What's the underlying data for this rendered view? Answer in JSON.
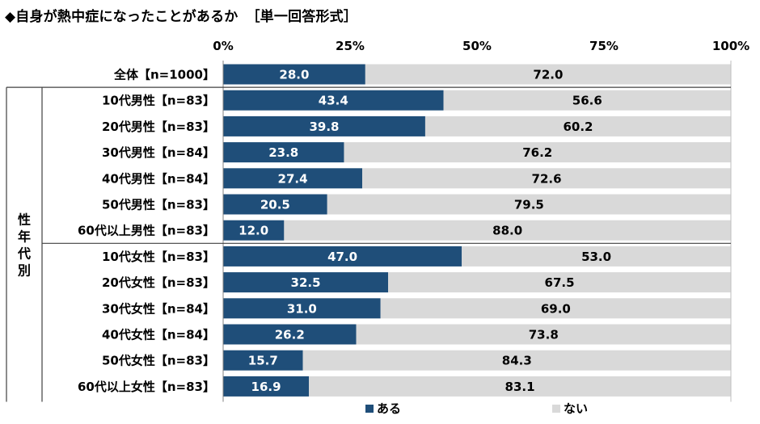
{
  "title": "◆自身が熱中症になったことがあるか",
  "title_note": "［単一回答形式］",
  "group_label": "性年代別",
  "chart_data": {
    "type": "bar",
    "orientation": "horizontal",
    "stacked": true,
    "xlim": [
      0,
      100
    ],
    "x_ticks": [
      "0%",
      "25%",
      "50%",
      "75%",
      "100%"
    ],
    "categories": [
      "全体【n=1000】",
      "10代男性【n=83】",
      "20代男性【n=83】",
      "30代男性【n=84】",
      "40代男性【n=84】",
      "50代男性【n=83】",
      "60代以上男性【n=83】",
      "10代女性【n=83】",
      "20代女性【n=83】",
      "30代女性【n=84】",
      "40代女性【n=84】",
      "50代女性【n=83】",
      "60代以上女性【n=83】"
    ],
    "series": [
      {
        "name": "ある",
        "color": "#1f4e79",
        "values": [
          28.0,
          43.4,
          39.8,
          23.8,
          27.4,
          20.5,
          12.0,
          47.0,
          32.5,
          31.0,
          26.2,
          15.7,
          16.9
        ]
      },
      {
        "name": "ない",
        "color": "#d9d9d9",
        "values": [
          72.0,
          56.6,
          60.2,
          76.2,
          72.6,
          79.5,
          88.0,
          53.0,
          67.5,
          69.0,
          73.8,
          84.3,
          83.1
        ]
      }
    ],
    "legend_position": "bottom"
  }
}
